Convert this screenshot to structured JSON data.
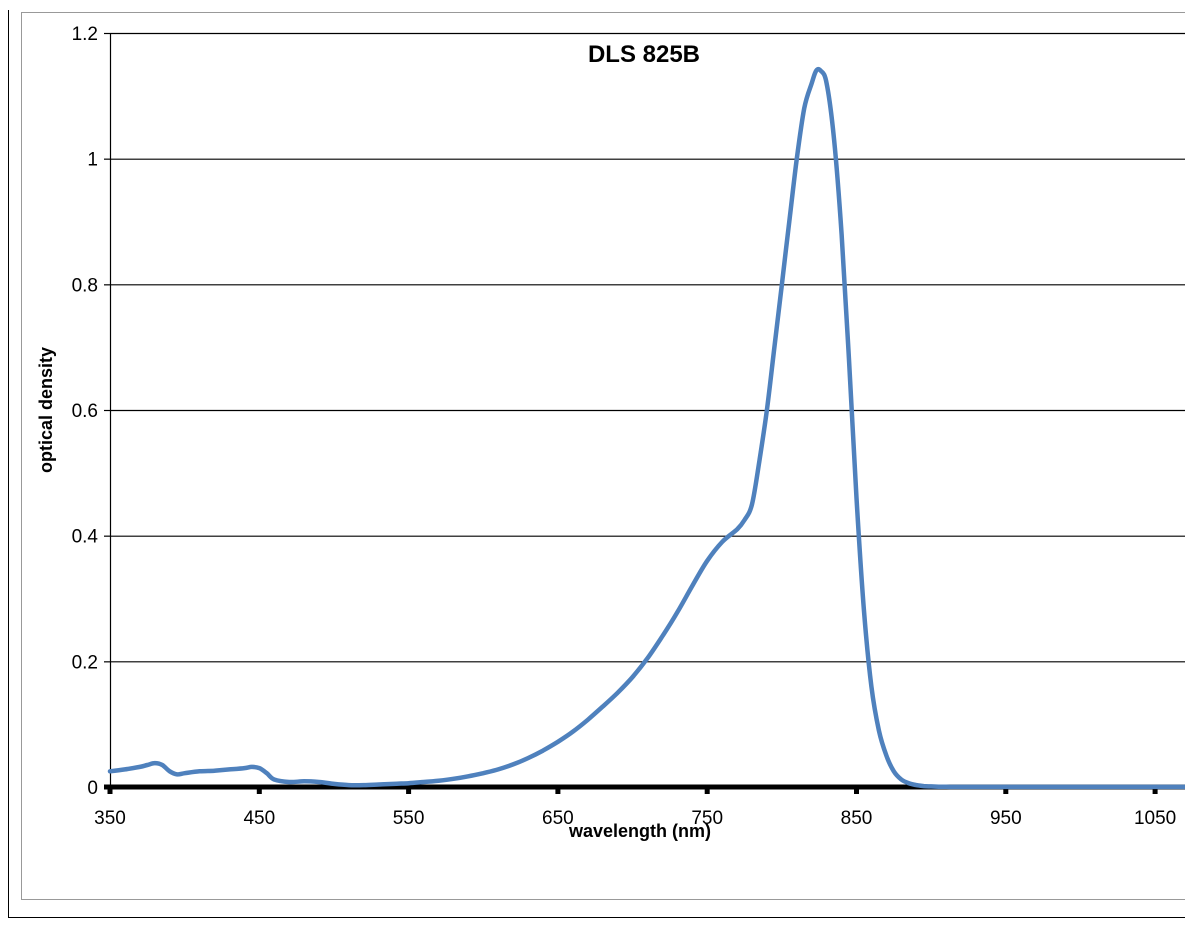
{
  "chart_data": {
    "type": "line",
    "title": "DLS 825B",
    "xlabel": "wavelength (nm)",
    "ylabel": "optical density",
    "xlim": [
      350,
      1100
    ],
    "ylim": [
      0,
      1.2
    ],
    "x_ticks": [
      "350",
      "450",
      "550",
      "650",
      "750",
      "850",
      "950",
      "1050"
    ],
    "y_ticks": [
      "0",
      "0.2",
      "0.4",
      "0.6",
      "0.8",
      "1",
      "1.2"
    ],
    "grid": "horizontal",
    "legend": "none",
    "series": [
      {
        "color": "#4f81bd",
        "x": [
          350,
          360,
          370,
          375,
          380,
          385,
          390,
          395,
          400,
          410,
          420,
          430,
          440,
          445,
          450,
          455,
          460,
          470,
          480,
          490,
          500,
          510,
          520,
          530,
          540,
          550,
          560,
          570,
          580,
          590,
          600,
          610,
          620,
          630,
          640,
          650,
          660,
          670,
          680,
          690,
          700,
          710,
          720,
          730,
          740,
          750,
          760,
          770,
          775,
          780,
          785,
          790,
          795,
          800,
          805,
          810,
          815,
          820,
          823,
          826,
          830,
          835,
          840,
          845,
          850,
          855,
          860,
          865,
          870,
          875,
          880,
          885,
          890,
          895,
          900,
          905,
          910,
          920,
          950,
          1000,
          1050,
          1100
        ],
        "values": [
          0.025,
          0.028,
          0.032,
          0.035,
          0.038,
          0.035,
          0.025,
          0.02,
          0.022,
          0.025,
          0.026,
          0.028,
          0.03,
          0.032,
          0.03,
          0.022,
          0.012,
          0.008,
          0.009,
          0.008,
          0.005,
          0.003,
          0.003,
          0.004,
          0.005,
          0.006,
          0.008,
          0.01,
          0.013,
          0.017,
          0.022,
          0.028,
          0.036,
          0.046,
          0.058,
          0.072,
          0.088,
          0.107,
          0.128,
          0.15,
          0.175,
          0.205,
          0.24,
          0.278,
          0.32,
          0.36,
          0.39,
          0.41,
          0.425,
          0.45,
          0.52,
          0.6,
          0.7,
          0.8,
          0.9,
          1.0,
          1.08,
          1.12,
          1.14,
          1.14,
          1.12,
          1.03,
          0.88,
          0.68,
          0.46,
          0.28,
          0.16,
          0.09,
          0.05,
          0.025,
          0.012,
          0.006,
          0.003,
          0.0015,
          0.001,
          0.0005,
          0.0003,
          0.0002,
          0.0002,
          0.0002,
          0.0002,
          0.0002
        ]
      }
    ]
  }
}
